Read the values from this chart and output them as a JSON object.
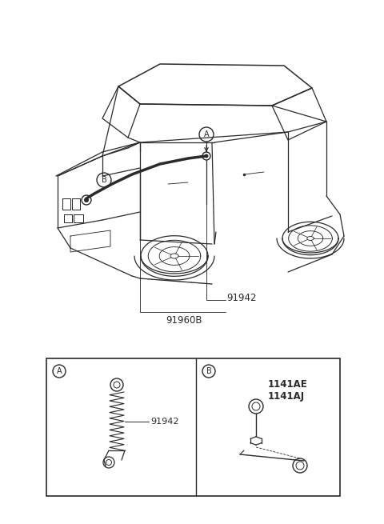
{
  "bg_color": "#ffffff",
  "line_color": "#2a2a2a",
  "label_color": "#2a2a2a",
  "fig_width": 4.8,
  "fig_height": 6.55,
  "dpi": 100,
  "label_91942": "91942",
  "label_91960B": "91960B",
  "label_1141AE": "1141AE",
  "label_1141AJ": "1141AJ",
  "callout_A": "A",
  "callout_B": "B"
}
